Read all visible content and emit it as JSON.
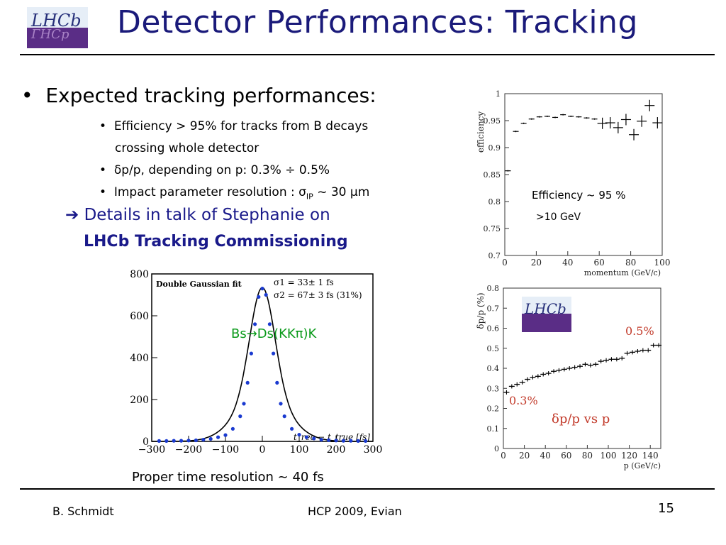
{
  "slide": {
    "logo_text": "LHCb",
    "title": "Detector Performances: Tracking",
    "bullet_main": "Expected  tracking performances:",
    "subbullets": [
      {
        "line1": "Efficiency > 95% for tracks from B decays",
        "line2": "crossing whole detector"
      },
      {
        "line1": "δp/p, depending on p:  0.3% ÷ 0.5%"
      },
      {
        "line1_pre": "Impact parameter resolution : σ",
        "line1_sub": "IP",
        "line1_post": " ~ 30 μm"
      }
    ],
    "arrow_text": "Details in talk of Stephanie on",
    "bold_text": "LHCb Tracking Commissioning"
  },
  "annotations": {
    "eff_note": "Efficiency ~ 95 %",
    "eff_note2": ">10 GeV",
    "mass_note": "Bs→Ds(KKπ)K",
    "time_res": "Proper time resolution ~ 40 fs"
  },
  "footer": {
    "author": "B. Schmidt",
    "conference": "HCP 2009,  Evian",
    "page": "15"
  },
  "chart_data": [
    {
      "type": "scatter",
      "xlabel": "momentum (GeV/c)",
      "ylabel": "efficiency",
      "xlim": [
        0,
        100
      ],
      "ylim": [
        0.7,
        1.0
      ],
      "xticks": [
        0,
        20,
        40,
        60,
        80,
        100
      ],
      "yticks": [
        0.7,
        0.75,
        0.8,
        0.85,
        0.9,
        0.95,
        1
      ],
      "x": [
        2,
        7,
        12,
        17,
        22,
        27,
        32,
        37,
        42,
        47,
        52,
        57,
        62,
        67,
        72,
        77,
        82,
        87,
        92,
        97
      ],
      "y": [
        0.857,
        0.93,
        0.945,
        0.953,
        0.957,
        0.958,
        0.956,
        0.961,
        0.958,
        0.957,
        0.955,
        0.953,
        0.945,
        0.946,
        0.937,
        0.952,
        0.924,
        0.949,
        0.978,
        0.946
      ]
    },
    {
      "type": "scatter",
      "title": "Double Gaussian fit",
      "legend": [
        "σ1 = 33± 1 fs",
        "σ2 = 67± 3 fs  (31%)"
      ],
      "xlabel": "t_rec − t_true  [fs]",
      "xlim": [
        -300,
        300
      ],
      "ylim": [
        0,
        800
      ],
      "xticks": [
        -300,
        -200,
        -100,
        0,
        100,
        200,
        300
      ],
      "yticks": [
        0,
        200,
        400,
        600,
        800
      ],
      "x": [
        -280,
        -260,
        -240,
        -220,
        -200,
        -180,
        -160,
        -140,
        -120,
        -100,
        -80,
        -60,
        -50,
        -40,
        -30,
        -20,
        -10,
        0,
        10,
        20,
        30,
        40,
        50,
        60,
        80,
        100,
        120,
        140,
        160,
        180,
        200,
        220,
        240,
        260,
        280
      ],
      "y": [
        2,
        2,
        3,
        3,
        4,
        5,
        8,
        12,
        20,
        30,
        60,
        120,
        180,
        280,
        420,
        560,
        690,
        730,
        700,
        560,
        420,
        280,
        180,
        120,
        60,
        32,
        20,
        14,
        8,
        6,
        4,
        3,
        3,
        2,
        2
      ]
    },
    {
      "type": "scatter",
      "xlabel": "p (GeV/c)",
      "ylabel": "δp/p (%)",
      "xlim": [
        0,
        150
      ],
      "ylim": [
        0,
        0.8
      ],
      "xticks": [
        0,
        20,
        40,
        60,
        80,
        100,
        120,
        140
      ],
      "yticks": [
        0,
        0.1,
        0.2,
        0.3,
        0.4,
        0.5,
        0.6,
        0.7,
        0.8
      ],
      "annotations": [
        "0.5%",
        "0.3%",
        "δp/p vs p"
      ],
      "x": [
        3,
        8,
        13,
        18,
        23,
        28,
        33,
        38,
        43,
        48,
        53,
        58,
        63,
        68,
        73,
        78,
        83,
        88,
        93,
        98,
        103,
        108,
        113,
        118,
        123,
        128,
        133,
        138,
        143,
        148
      ],
      "y": [
        0.28,
        0.31,
        0.32,
        0.33,
        0.345,
        0.355,
        0.36,
        0.37,
        0.375,
        0.385,
        0.39,
        0.395,
        0.4,
        0.405,
        0.41,
        0.42,
        0.415,
        0.42,
        0.435,
        0.44,
        0.445,
        0.445,
        0.45,
        0.475,
        0.48,
        0.485,
        0.49,
        0.49,
        0.515,
        0.515
      ]
    }
  ]
}
